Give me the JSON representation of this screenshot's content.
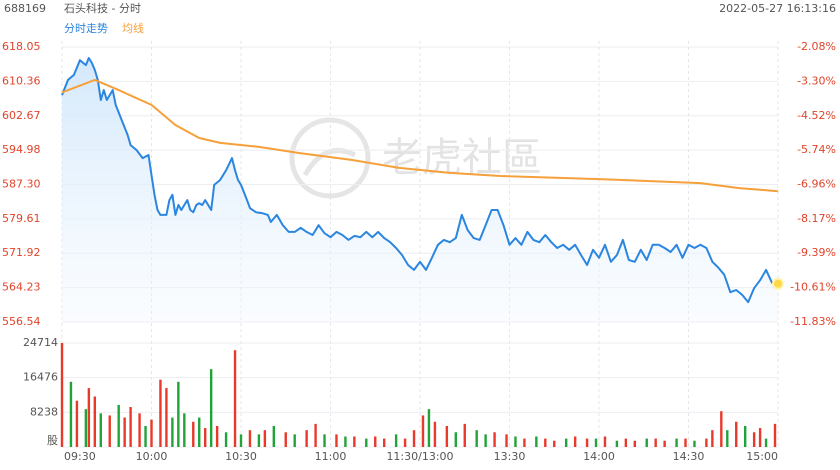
{
  "header": {
    "code": "688169",
    "name": "石头科技 - 分时",
    "datetime": "2022-05-27 16:13:16"
  },
  "chart_data": [
    {
      "type": "line",
      "watermark": "老虎社區",
      "series": [
        {
          "name": "分时走势",
          "color": "#2b86e0",
          "x": [
            0,
            2,
            4,
            6,
            8,
            9,
            10,
            11,
            12,
            13,
            14,
            15,
            17,
            18,
            20,
            22,
            23,
            25,
            27,
            29,
            30,
            31,
            32,
            33,
            35,
            36,
            37,
            38,
            39,
            40,
            41,
            42,
            43,
            44,
            45,
            46,
            47,
            48,
            50,
            51,
            53,
            55,
            57,
            58,
            59,
            60,
            62,
            63,
            65,
            67,
            69,
            70,
            72,
            74,
            76,
            78,
            80,
            82,
            84,
            86,
            88,
            90,
            92,
            94,
            96,
            98,
            100,
            102,
            104,
            106,
            108,
            110,
            112,
            114,
            116,
            118,
            120,
            122,
            124,
            126,
            128,
            130,
            132,
            134,
            136,
            138,
            140,
            142,
            144,
            146,
            148,
            150,
            152,
            154,
            156,
            158,
            160,
            162,
            164,
            166,
            168,
            170,
            172,
            174,
            176,
            178,
            180,
            182,
            184,
            186,
            188,
            190,
            192,
            194,
            196,
            198,
            200,
            202,
            204,
            206,
            208,
            210,
            212,
            214,
            216,
            218,
            220,
            222,
            224,
            226,
            228,
            230,
            232,
            234,
            236,
            238,
            240
          ],
          "values": [
            607.3,
            610.7,
            611.8,
            615.1,
            614.0,
            615.6,
            614.5,
            612.9,
            610.7,
            606.2,
            608.4,
            606.2,
            608.4,
            605.1,
            601.7,
            598.4,
            596.1,
            595.0,
            593.2,
            593.9,
            589.4,
            585.0,
            581.6,
            580.5,
            580.5,
            583.8,
            585.0,
            580.5,
            582.7,
            581.6,
            582.7,
            583.8,
            581.6,
            581.1,
            582.7,
            583.1,
            582.7,
            583.8,
            581.6,
            587.2,
            588.3,
            590.5,
            593.2,
            590.5,
            588.3,
            587.2,
            583.8,
            582.0,
            581.1,
            580.9,
            580.5,
            578.9,
            580.5,
            578.2,
            576.7,
            576.7,
            577.6,
            576.7,
            576.0,
            578.2,
            576.4,
            575.5,
            576.7,
            576.0,
            574.9,
            575.8,
            575.5,
            576.7,
            575.5,
            576.7,
            575.3,
            574.4,
            573.1,
            571.5,
            569.3,
            568.2,
            570.0,
            568.2,
            570.9,
            573.8,
            574.9,
            574.4,
            575.3,
            580.5,
            577.1,
            575.3,
            574.9,
            578.2,
            581.6,
            581.6,
            578.2,
            573.8,
            575.3,
            573.8,
            576.7,
            574.9,
            574.4,
            576.0,
            574.4,
            573.1,
            573.8,
            572.7,
            573.8,
            571.5,
            569.3,
            572.7,
            570.9,
            573.8,
            570.0,
            571.5,
            574.9,
            570.4,
            570.0,
            572.7,
            570.4,
            573.8,
            573.8,
            573.1,
            572.2,
            573.8,
            570.9,
            573.8,
            573.1,
            573.8,
            573.1,
            570.0,
            568.7,
            567.1,
            563.2,
            563.7,
            562.6,
            561.0,
            564.1,
            565.9,
            568.2,
            565.3,
            565.1
          ]
        },
        {
          "name": "均线",
          "color": "#f5a03a",
          "x": [
            0,
            11,
            19,
            30,
            38,
            46,
            53,
            66,
            80,
            97,
            113,
            130,
            147,
            180,
            214,
            227,
            240
          ],
          "values": [
            607.9,
            610.7,
            608.4,
            605.1,
            600.6,
            597.7,
            596.6,
            595.7,
            594.3,
            592.8,
            591.0,
            589.9,
            589.2,
            588.5,
            587.6,
            586.5,
            585.8
          ]
        }
      ],
      "xlim": [
        0,
        240
      ],
      "xticks": [
        {
          "value": 0,
          "label": "09:30"
        },
        {
          "value": 30,
          "label": "10:00"
        },
        {
          "value": 60,
          "label": "10:30"
        },
        {
          "value": 90,
          "label": "11:00"
        },
        {
          "value": 120,
          "label": "11:30/13:00"
        },
        {
          "value": 150,
          "label": "13:30"
        },
        {
          "value": 180,
          "label": "14:00"
        },
        {
          "value": 210,
          "label": "14:30"
        },
        {
          "value": 240,
          "label": "15:00"
        }
      ],
      "ylim": [
        556.54,
        618.05
      ],
      "yticks": [
        618.05,
        610.36,
        602.67,
        594.98,
        {
          "value": 587.3,
          "label": "587.30"
        },
        579.61,
        571.92,
        564.23,
        556.54
      ],
      "y2lim": [
        -11.83,
        -2.08
      ],
      "y2ticks": [
        {
          "value": -2.08,
          "label": "-2.08%"
        },
        {
          "value": -3.3,
          "label": "-3.30%"
        },
        {
          "value": -4.52,
          "label": "-4.52%"
        },
        {
          "value": -5.74,
          "label": "-5.74%"
        },
        {
          "value": -6.96,
          "label": "-6.96%"
        },
        {
          "value": -8.17,
          "label": "-8.17%"
        },
        {
          "value": -9.39,
          "label": "-9.39%"
        },
        {
          "value": -10.61,
          "label": "-10.61%"
        },
        {
          "value": -11.83,
          "label": "-11.83%"
        }
      ],
      "tick_color": "#e0442b",
      "grid": true
    },
    {
      "type": "bar",
      "x": [
        0,
        3,
        5,
        8,
        9,
        11,
        13,
        16,
        19,
        21,
        23,
        26,
        28,
        30,
        33,
        35,
        37,
        39,
        41,
        44,
        46,
        48,
        50,
        52,
        55,
        58,
        60,
        63,
        66,
        68,
        71,
        75,
        78,
        82,
        85,
        88,
        92,
        95,
        98,
        102,
        105,
        108,
        112,
        115,
        118,
        121,
        123,
        125,
        129,
        132,
        135,
        139,
        142,
        145,
        149,
        152,
        155,
        159,
        162,
        165,
        169,
        172,
        176,
        179,
        182,
        186,
        189,
        192,
        196,
        199,
        202,
        206,
        209,
        212,
        216,
        218,
        221,
        223,
        226,
        229,
        232,
        234,
        236,
        239
      ],
      "values": [
        24714,
        15500,
        11000,
        9000,
        14000,
        12000,
        8000,
        7500,
        10000,
        7000,
        9500,
        8000,
        5000,
        6500,
        16000,
        14000,
        7000,
        15500,
        8000,
        6000,
        7000,
        4500,
        18500,
        5000,
        3500,
        23000,
        3000,
        4000,
        3000,
        4000,
        5000,
        3500,
        3000,
        4000,
        5500,
        3000,
        3000,
        2500,
        2500,
        2000,
        2500,
        2000,
        3000,
        2000,
        4000,
        7500,
        9000,
        6000,
        5000,
        3500,
        5500,
        4000,
        3000,
        3500,
        3000,
        2500,
        2000,
        2500,
        2000,
        1500,
        2000,
        2500,
        2000,
        2000,
        2500,
        1500,
        2000,
        1500,
        2000,
        2000,
        1500,
        2000,
        2000,
        1500,
        2000,
        4000,
        8500,
        4000,
        6000,
        5000,
        3500,
        4500,
        2000,
        5500
      ],
      "bar_colors": [
        "#e8392b",
        "#22a33a",
        "#e8392b",
        "#22a33a",
        "#e8392b",
        "#e8392b",
        "#22a33a",
        "#e8392b",
        "#22a33a",
        "#e8392b",
        "#e8392b",
        "#e8392b",
        "#22a33a",
        "#e8392b",
        "#e8392b",
        "#e8392b",
        "#22a33a",
        "#22a33a",
        "#22a33a",
        "#e8392b",
        "#22a33a",
        "#e8392b",
        "#22a33a",
        "#e8392b",
        "#22a33a",
        "#e8392b",
        "#22a33a",
        "#e8392b",
        "#22a33a",
        "#e8392b",
        "#22a33a",
        "#e8392b",
        "#22a33a",
        "#e8392b",
        "#e8392b",
        "#22a33a",
        "#e8392b",
        "#22a33a",
        "#e8392b",
        "#22a33a",
        "#e8392b",
        "#e8392b",
        "#22a33a",
        "#e8392b",
        "#e8392b",
        "#e8392b",
        "#22a33a",
        "#e8392b",
        "#e8392b",
        "#22a33a",
        "#e8392b",
        "#22a33a",
        "#22a33a",
        "#e8392b",
        "#e8392b",
        "#22a33a",
        "#e8392b",
        "#22a33a",
        "#e8392b",
        "#e8392b",
        "#22a33a",
        "#e8392b",
        "#e8392b",
        "#22a33a",
        "#e8392b",
        "#22a33a",
        "#e8392b",
        "#e8392b",
        "#22a33a",
        "#e8392b",
        "#e8392b",
        "#22a33a",
        "#e8392b",
        "#22a33a",
        "#e8392b",
        "#e8392b",
        "#e8392b",
        "#22a33a",
        "#e8392b",
        "#22a33a",
        "#e8392b",
        "#e8392b",
        "#22a33a",
        "#e8392b"
      ],
      "xlim": [
        0,
        240
      ],
      "ylim": [
        0,
        24714
      ],
      "yticks": [
        {
          "value": 0,
          "label": "股"
        },
        8238,
        16476,
        24714
      ]
    }
  ]
}
